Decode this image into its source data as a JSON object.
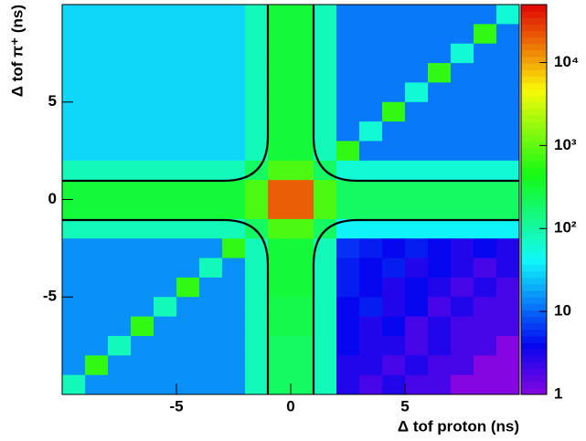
{
  "chart_data": {
    "type": "heatmap",
    "x_label": "Δ tof proton (ns)",
    "y_label": "Δ tof π⁺ (ns)",
    "xlim": [
      -10,
      10
    ],
    "ylim": [
      -10,
      10
    ],
    "xticks": [
      -5,
      0,
      5
    ],
    "yticks": [
      -5,
      0,
      5
    ],
    "zlim": [
      1,
      50000
    ],
    "log_z": true,
    "zticks": [
      1,
      10,
      {
        "value": 100,
        "label": "10²"
      },
      {
        "value": 1000,
        "label": "10³"
      },
      {
        "value": 10000,
        "label": "10⁴"
      }
    ],
    "z": [
      [
        30,
        30,
        30,
        30,
        30,
        30,
        30,
        30,
        80,
        300,
        300,
        80,
        12,
        12,
        12,
        12,
        12,
        12,
        12,
        60
      ],
      [
        30,
        30,
        30,
        30,
        30,
        30,
        30,
        30,
        80,
        300,
        300,
        80,
        12,
        12,
        12,
        12,
        12,
        12,
        600,
        12
      ],
      [
        30,
        30,
        30,
        30,
        30,
        30,
        30,
        30,
        80,
        300,
        300,
        80,
        12,
        12,
        12,
        12,
        12,
        60,
        12,
        12
      ],
      [
        30,
        30,
        30,
        30,
        30,
        30,
        30,
        30,
        80,
        300,
        300,
        80,
        12,
        12,
        12,
        12,
        600,
        12,
        12,
        12
      ],
      [
        30,
        30,
        30,
        30,
        30,
        30,
        30,
        30,
        80,
        300,
        300,
        80,
        12,
        12,
        12,
        60,
        12,
        12,
        12,
        12
      ],
      [
        30,
        30,
        30,
        30,
        30,
        30,
        30,
        30,
        80,
        300,
        300,
        80,
        12,
        12,
        600,
        12,
        12,
        12,
        12,
        12
      ],
      [
        30,
        30,
        30,
        30,
        30,
        30,
        30,
        30,
        80,
        300,
        300,
        80,
        12,
        60,
        12,
        12,
        12,
        12,
        12,
        12
      ],
      [
        30,
        30,
        30,
        30,
        30,
        30,
        30,
        30,
        80,
        300,
        300,
        80,
        600,
        12,
        12,
        12,
        12,
        12,
        12,
        12
      ],
      [
        80,
        80,
        80,
        80,
        80,
        80,
        80,
        80,
        200,
        800,
        800,
        200,
        60,
        60,
        60,
        60,
        60,
        60,
        60,
        60
      ],
      [
        300,
        300,
        300,
        300,
        300,
        300,
        300,
        300,
        800,
        20000,
        20000,
        800,
        200,
        200,
        200,
        200,
        200,
        200,
        200,
        200
      ],
      [
        300,
        300,
        300,
        300,
        300,
        300,
        300,
        300,
        800,
        20000,
        20000,
        800,
        200,
        200,
        200,
        200,
        200,
        200,
        200,
        200
      ],
      [
        80,
        80,
        80,
        80,
        80,
        80,
        80,
        80,
        200,
        800,
        800,
        200,
        40,
        40,
        40,
        40,
        40,
        40,
        40,
        40
      ],
      [
        15,
        15,
        15,
        15,
        15,
        15,
        15,
        600,
        80,
        300,
        300,
        80,
        6,
        5,
        4,
        5,
        4,
        3,
        4,
        3
      ],
      [
        15,
        15,
        15,
        15,
        15,
        15,
        80,
        15,
        80,
        300,
        300,
        80,
        5,
        4,
        5,
        3,
        4,
        3,
        2,
        3
      ],
      [
        15,
        15,
        15,
        15,
        15,
        600,
        15,
        15,
        80,
        300,
        300,
        80,
        5,
        4,
        3,
        4,
        3,
        2,
        3,
        2
      ],
      [
        15,
        15,
        15,
        15,
        80,
        15,
        15,
        15,
        80,
        250,
        250,
        80,
        4,
        5,
        3,
        4,
        2,
        3,
        2,
        2
      ],
      [
        15,
        15,
        15,
        600,
        15,
        15,
        15,
        15,
        80,
        250,
        250,
        80,
        4,
        3,
        4,
        2,
        3,
        2,
        2,
        2
      ],
      [
        15,
        15,
        80,
        15,
        15,
        15,
        15,
        15,
        80,
        200,
        200,
        80,
        4,
        3,
        3,
        2,
        3,
        2,
        2,
        1
      ],
      [
        15,
        600,
        15,
        15,
        15,
        15,
        15,
        15,
        80,
        200,
        200,
        80,
        3,
        3,
        2,
        3,
        2,
        2,
        1,
        1
      ],
      [
        80,
        15,
        15,
        15,
        15,
        15,
        15,
        15,
        80,
        200,
        200,
        80,
        3,
        2,
        3,
        2,
        2,
        1,
        1,
        1
      ]
    ]
  }
}
